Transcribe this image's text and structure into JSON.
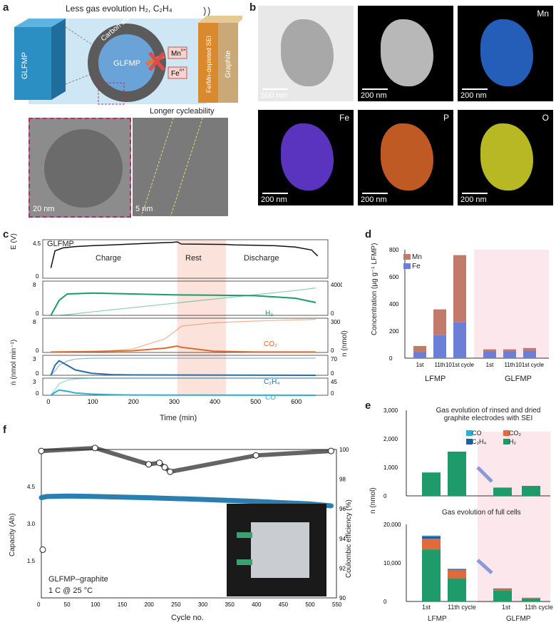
{
  "panels": {
    "a": {
      "label": "a",
      "top_text": "Less gas evolution H₂, C₂H₄",
      "left_slab": "GLFMP",
      "carbon_shell": "Carbon shell",
      "core": "GLFMP",
      "mn": "Mn",
      "fe": "Fe",
      "ion_sup": "n+",
      "sei": "Fe/Mn-depleted SEI",
      "graphite": "Graphite",
      "longer": "Longer cycleability",
      "scale1": "20 nm",
      "scale2": "5 nm",
      "colors": {
        "slab": "#2c8fc4",
        "shell": "#5b5b5b",
        "core": "#6aa3d8",
        "bg": "#cfe7f5",
        "cross": "#e14a4a",
        "sei": "#d98a2e",
        "graphite": "#c9a977"
      }
    },
    "b": {
      "label": "b",
      "tiles": [
        {
          "scale": "500 nm",
          "element": "",
          "color": "#9c9c9c"
        },
        {
          "scale": "200 nm",
          "element": "",
          "color": "#d8d8d8"
        },
        {
          "scale": "200 nm",
          "element": "Mn",
          "color": "#2a6fd8"
        },
        {
          "scale": "200 nm",
          "element": "Fe",
          "color": "#6a3de0"
        },
        {
          "scale": "200 nm",
          "element": "P",
          "color": "#e06a2a"
        },
        {
          "scale": "200 nm",
          "element": "O",
          "color": "#d7d82a"
        }
      ]
    },
    "c": {
      "label": "c",
      "title": "GLFMP",
      "phases": [
        "Charge",
        "Rest",
        "Discharge"
      ],
      "ylabel_e": "E (V)",
      "ylabel_ndot": "ṅ (nmol min⁻¹)",
      "ylabel_n": "n (nmol)",
      "xlabel": "Time (min)",
      "gases": [
        "H₂",
        "CO₂",
        "C₂H₄",
        "CO"
      ]
    },
    "d": {
      "label": "d",
      "ylabel": "Concentration (µg g⁻¹ LFMP)",
      "legend": [
        "Mn",
        "Fe"
      ],
      "group_labels": [
        "LFMP",
        "GLFMP"
      ]
    },
    "e": {
      "label": "e",
      "ylabel": "n (nmol)",
      "top_title": "Gas evolution of rinsed and dried graphite electrodes with SEI",
      "bottom_title": "Gas evolution of full cells",
      "legend": [
        "CO",
        "CO₂",
        "C₂H₄",
        "H₂"
      ],
      "xticks": [
        "1st",
        "11th cycle",
        "1st",
        "11th cycle"
      ],
      "group_labels": [
        "LFMP",
        "GLFMP"
      ]
    },
    "f": {
      "label": "f",
      "ylabel_left": "Capacity (Ah)",
      "ylabel_right": "Coulombic efficiency (%)",
      "xlabel": "Cycle no.",
      "note1": "GLFMP–graphite",
      "note2": "1 C @ 25 °C"
    }
  },
  "chart_data": [
    {
      "type": "line",
      "panel": "c-E",
      "x": [
        0,
        10,
        30,
        60,
        100,
        150,
        200,
        250,
        300,
        310,
        320,
        430,
        450,
        500,
        550,
        600,
        640,
        655
      ],
      "values": [
        1.2,
        3.2,
        3.55,
        3.7,
        3.8,
        3.9,
        4.0,
        4.1,
        4.2,
        4.25,
        4.0,
        3.95,
        3.9,
        3.85,
        3.8,
        3.65,
        3.3,
        2.6
      ],
      "ylim": [
        0,
        4.5
      ],
      "xlim": [
        -20,
        680
      ]
    },
    {
      "type": "line",
      "panel": "c-H2",
      "x": [
        0,
        20,
        40,
        100,
        200,
        300,
        400,
        500,
        600,
        650
      ],
      "values": [
        0,
        3.5,
        5,
        5.2,
        5,
        4.8,
        4.7,
        4.6,
        4,
        3
      ],
      "cumulative": [
        0,
        20,
        80,
        400,
        900,
        1400,
        1900,
        2400,
        2900,
        3200
      ],
      "ylim": [
        0,
        8
      ],
      "ylim_right": [
        0,
        4000
      ]
    },
    {
      "type": "line",
      "panel": "c-CO2",
      "x": [
        0,
        100,
        200,
        280,
        310,
        320,
        400,
        500,
        650
      ],
      "values": [
        0.1,
        0.2,
        0.4,
        1.0,
        1.5,
        1.2,
        0.3,
        0.1,
        0.1
      ],
      "cumulative": [
        0,
        5,
        30,
        120,
        200,
        230,
        260,
        275,
        290
      ],
      "ylim": [
        0,
        8
      ],
      "ylim_right": [
        0,
        300
      ]
    },
    {
      "type": "line",
      "panel": "c-C2H4",
      "x": [
        0,
        10,
        20,
        40,
        60,
        100,
        150,
        200,
        650
      ],
      "values": [
        0,
        1.5,
        2.2,
        1.5,
        0.8,
        0.3,
        0.1,
        0.05,
        0
      ],
      "cumulative": [
        0,
        15,
        35,
        50,
        57,
        60,
        60,
        60,
        60
      ],
      "ylim": [
        0,
        3
      ],
      "ylim_right": [
        0,
        70
      ]
    },
    {
      "type": "line",
      "panel": "c-CO",
      "x": [
        0,
        10,
        20,
        40,
        60,
        100,
        150,
        200,
        650
      ],
      "values": [
        0,
        0.5,
        0.9,
        0.7,
        0.4,
        0.2,
        0.1,
        0.05,
        0
      ],
      "cumulative": [
        0,
        15,
        30,
        40,
        43,
        45,
        45,
        45,
        45
      ],
      "ylim": [
        0,
        3
      ],
      "ylim_right": [
        0,
        45
      ]
    },
    {
      "type": "bar",
      "panel": "d",
      "categories": [
        "1st",
        "11th",
        "101st cycle",
        "1st",
        "11th",
        "101st cycle"
      ],
      "series": [
        {
          "name": "Fe",
          "values": [
            45,
            170,
            265,
            50,
            50,
            55
          ]
        },
        {
          "name": "Mn",
          "values": [
            45,
            190,
            495,
            15,
            15,
            20
          ]
        }
      ],
      "ylim": [
        0,
        800
      ]
    },
    {
      "type": "bar",
      "panel": "e-top",
      "categories": [
        "1st",
        "11th cycle",
        "1st",
        "11th cycle"
      ],
      "series": [
        {
          "name": "H₂",
          "values": [
            820,
            1550,
            290,
            350
          ]
        }
      ],
      "ylim": [
        0,
        3000
      ]
    },
    {
      "type": "bar",
      "panel": "e-bottom",
      "categories": [
        "1st",
        "11th cycle",
        "1st",
        "11th cycle"
      ],
      "series": [
        {
          "name": "H₂",
          "values": [
            13500,
            6000,
            2900,
            800
          ]
        },
        {
          "name": "CO₂",
          "values": [
            2800,
            2200,
            350,
            100
          ]
        },
        {
          "name": "C₂H₄",
          "values": [
            600,
            200,
            100,
            50
          ]
        },
        {
          "name": "CO",
          "values": [
            200,
            100,
            50,
            20
          ]
        }
      ],
      "ylim": [
        0,
        20000
      ]
    },
    {
      "type": "scatter",
      "panel": "f",
      "capacity_x": [
        0,
        10,
        50,
        100,
        200,
        300,
        400,
        500,
        540
      ],
      "capacity_y": [
        4.05,
        4.1,
        4.12,
        4.1,
        4.05,
        3.98,
        3.9,
        3.8,
        3.72
      ],
      "ce_x": [
        0,
        100,
        200,
        220,
        230,
        240,
        400,
        540
      ],
      "ce_y": [
        99.9,
        100.1,
        99.0,
        99.1,
        98.8,
        98.5,
        99.6,
        99.9
      ],
      "outlier": {
        "x": 0,
        "y": 1.95
      },
      "xlim": [
        0,
        550
      ],
      "ylim": [
        0,
        6
      ],
      "ylim_right": [
        90,
        100
      ]
    }
  ]
}
